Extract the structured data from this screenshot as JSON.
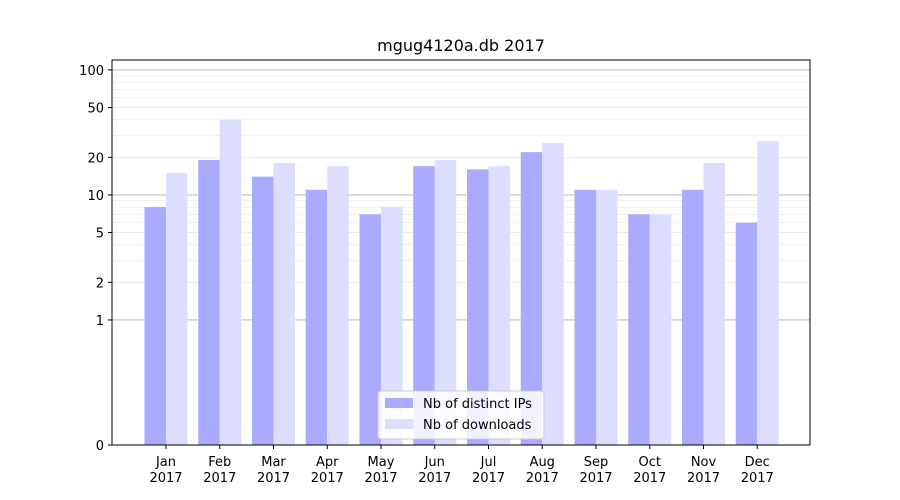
{
  "chart_data": {
    "type": "bar",
    "title": "mgug4120a.db 2017",
    "xlabel": "",
    "ylabel": "",
    "yscale": "symlog",
    "ylim": [
      0,
      120
    ],
    "yticks": [
      0,
      1,
      2,
      5,
      10,
      20,
      50,
      100
    ],
    "ytick_labels": [
      "0",
      "1",
      "2",
      "5",
      "10",
      "20",
      "50",
      "100"
    ],
    "categories": [
      "Jan\n2017",
      "Feb\n2017",
      "Mar\n2017",
      "Apr\n2017",
      "May\n2017",
      "Jun\n2017",
      "Jul\n2017",
      "Aug\n2017",
      "Sep\n2017",
      "Oct\n2017",
      "Nov\n2017",
      "Dec\n2017"
    ],
    "series": [
      {
        "name": "Nb of distinct IPs",
        "color": "#aaaaff",
        "values": [
          8,
          19,
          14,
          11,
          7,
          17,
          16,
          22,
          11,
          7,
          11,
          6
        ]
      },
      {
        "name": "Nb of downloads",
        "color": "#ddddff",
        "values": [
          15,
          40,
          18,
          17,
          8,
          19,
          17,
          26,
          11,
          7,
          18,
          27
        ]
      }
    ],
    "grid": true,
    "legend_position": "lower-center"
  }
}
